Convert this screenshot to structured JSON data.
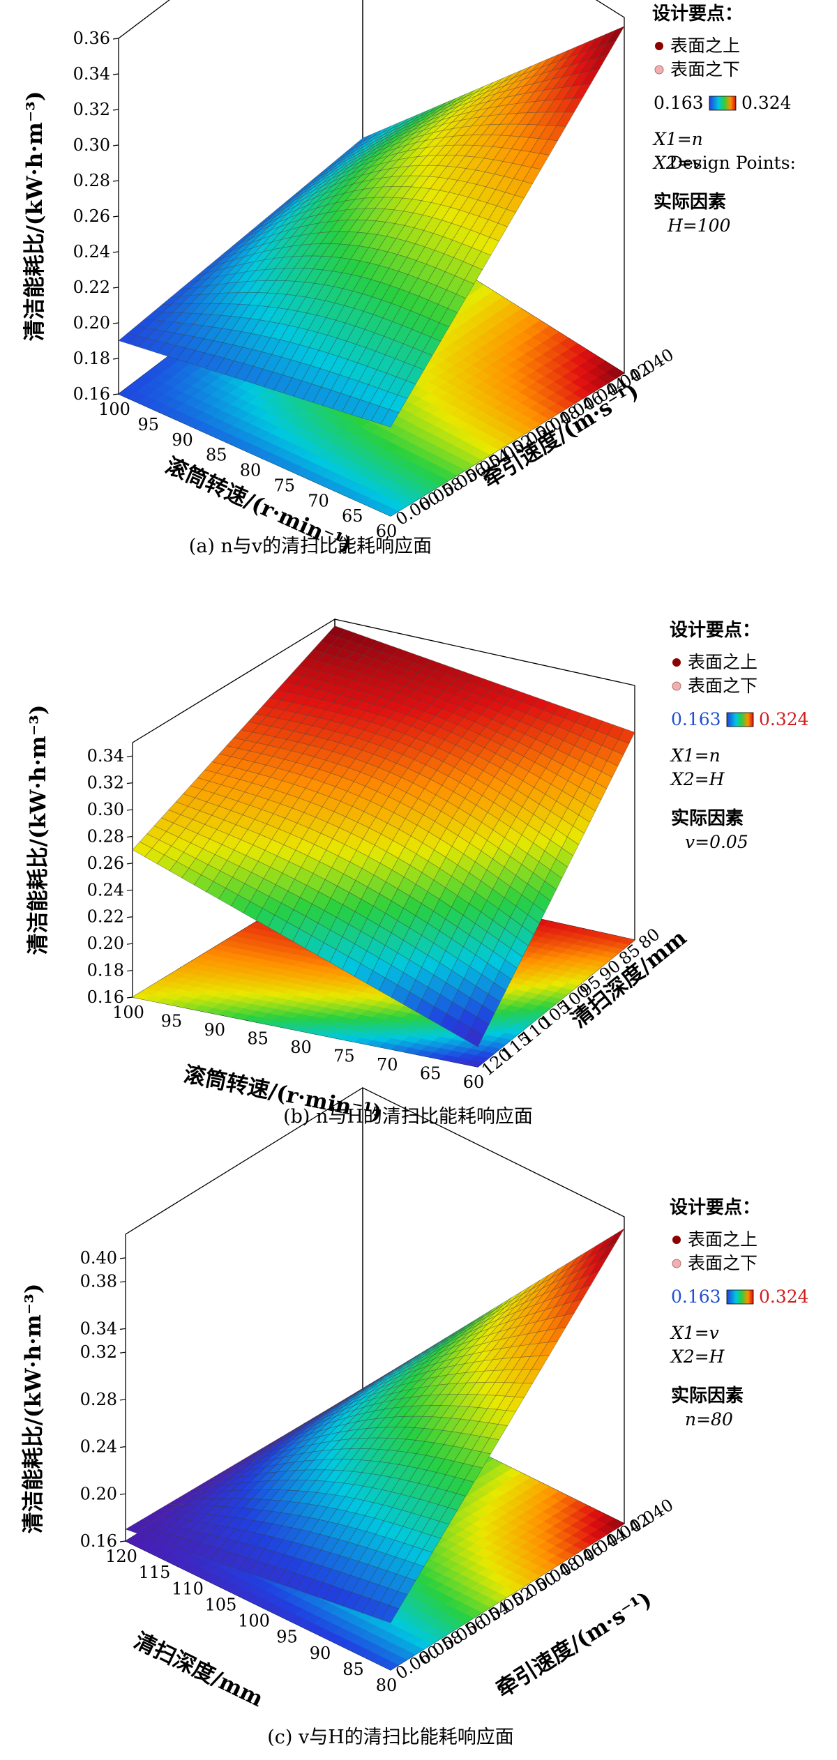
{
  "chart_data": [
    {
      "type": "surface3d",
      "caption": "(a) n与v的清扫比能耗响应面",
      "zlabel": "清洁能耗比/(kW·h·m⁻³)",
      "z_ticks": [
        "0.16",
        "0.18",
        "0.20",
        "0.22",
        "0.24",
        "0.26",
        "0.28",
        "0.30",
        "0.32",
        "0.34",
        "0.36"
      ],
      "zlim": [
        0.16,
        0.36
      ],
      "xlabel": "滚筒转速/(r·min⁻¹)",
      "x_ticks": [
        "100",
        "95",
        "90",
        "85",
        "80",
        "75",
        "70",
        "65",
        "60"
      ],
      "ylabel": "牵引速度/(m·s⁻¹)",
      "y_ticks": [
        "0.060",
        "0.058",
        "0.056",
        "0.054",
        "0.052",
        "0.050",
        "0.048",
        "0.046",
        "0.044",
        "0.042",
        "0.040"
      ],
      "corner_values": {
        "x100_y060": 0.19,
        "x60_y060": 0.21,
        "x100_y040": 0.2,
        "x60_y040": 0.355
      },
      "legend": {
        "heading": "设计要点：",
        "above": "表面之上",
        "below": "表面之下",
        "range_low": "0.163",
        "range_high": "0.324",
        "x1": "X1=n",
        "x2": "X2=v",
        "overlap_text": "Design Points:",
        "factor_heading": "实际因素",
        "factor_value": "H=100",
        "colored_range": false
      }
    },
    {
      "type": "surface3d",
      "caption": "(b) n与H的清扫比能耗响应面",
      "zlabel": "清洁能耗比/(kW·h·m⁻³)",
      "z_ticks": [
        "0.16",
        "0.18",
        "0.20",
        "0.22",
        "0.24",
        "0.26",
        "0.28",
        "0.30",
        "0.32",
        "0.34"
      ],
      "zlim": [
        0.16,
        0.35
      ],
      "xlabel": "滚筒转速/(r·min⁻¹)",
      "x_ticks": [
        "100",
        "95",
        "90",
        "85",
        "80",
        "75",
        "70",
        "65",
        "60"
      ],
      "ylabel": "清扫深度/mm",
      "y_ticks": [
        "120",
        "115",
        "110",
        "105",
        "100",
        "95",
        "90",
        "85",
        "80"
      ],
      "corner_values": {
        "x100_y120": 0.27,
        "x60_y120": 0.175,
        "x100_y80": 0.345,
        "x60_y80": 0.315
      },
      "legend": {
        "heading": "设计要点：",
        "above": "表面之上",
        "below": "表面之下",
        "range_low": "0.163",
        "range_high": "0.324",
        "x1": "X1=n",
        "x2": "X2=H",
        "overlap_text": "",
        "factor_heading": "实际因素",
        "factor_value": "v=0.05",
        "colored_range": true
      }
    },
    {
      "type": "surface3d",
      "caption": "(c) v与H的清扫比能耗响应面",
      "zlabel": "清洁能耗比/(kW·h·m⁻³)",
      "z_ticks": [
        "0.16",
        "0.20",
        "0.24",
        "0.28",
        "0.32",
        "0.34",
        "0.38",
        "0.40"
      ],
      "zlim": [
        0.16,
        0.42
      ],
      "xlabel": "清扫深度/mm",
      "x_ticks": [
        "120",
        "115",
        "110",
        "105",
        "100",
        "95",
        "90",
        "85",
        "80"
      ],
      "ylabel": "牵引速度/(m·s⁻¹)",
      "y_ticks": [
        "0.060",
        "0.058",
        "0.056",
        "0.054",
        "0.052",
        "0.050",
        "0.048",
        "0.046",
        "0.044",
        "0.042",
        "0.040"
      ],
      "corner_values": {
        "x120_y060": 0.17,
        "x80_y060": 0.2,
        "x120_y040": 0.165,
        "x80_y040": 0.41
      },
      "legend": {
        "heading": "设计要点：",
        "above": "表面之上",
        "below": "表面之下",
        "range_low": "0.163",
        "range_high": "0.324",
        "x1": "X1=v",
        "x2": "X2=H",
        "overlap_text": "",
        "factor_heading": "实际因素",
        "factor_value": "n=80",
        "colored_range": true
      }
    }
  ],
  "colors": {
    "colormap": [
      "#5a0fa0",
      "#2040e0",
      "#00c8e0",
      "#28d040",
      "#e8e800",
      "#ff9000",
      "#e01010",
      "#700010"
    ],
    "above_marker": "#8b0000",
    "below_marker": "#f0b0b0",
    "range_low_text": "#1f4fd0",
    "range_high_text": "#d21b1b"
  }
}
